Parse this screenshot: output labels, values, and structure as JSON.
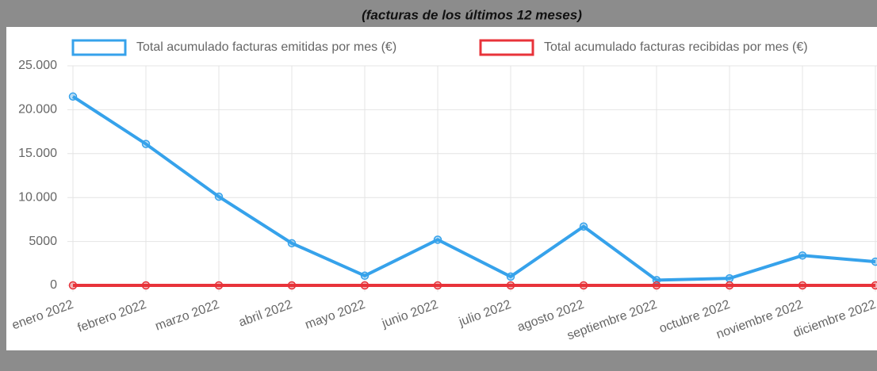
{
  "chart_data": {
    "type": "line",
    "title": "(facturas de los últimos 12 meses)",
    "categories": [
      "enero 2022",
      "febrero 2022",
      "marzo 2022",
      "abril 2022",
      "mayo 2022",
      "junio 2022",
      "julio 2022",
      "agosto 2022",
      "septiembre 2022",
      "octubre 2022",
      "noviembre 2022",
      "diciembre 2022"
    ],
    "series": [
      {
        "name": "Total acumulado facturas emitidas por mes (€)",
        "color": "#36a2eb",
        "values": [
          21500,
          16100,
          10100,
          4800,
          1100,
          5200,
          1000,
          6700,
          600,
          800,
          3400,
          2700
        ]
      },
      {
        "name": "Total acumulado facturas recibidas por mes (€)",
        "color": "#e8333a",
        "values": [
          0,
          0,
          0,
          0,
          0,
          0,
          0,
          0,
          0,
          0,
          0,
          0
        ]
      }
    ],
    "ylim": [
      0,
      25000
    ],
    "yticks": [
      0,
      5000,
      {
        "value": 10000,
        "label": "10.000"
      },
      {
        "value": 15000,
        "label": "15.000"
      },
      {
        "value": 20000,
        "label": "20.000"
      },
      {
        "value": 25000,
        "label": "25.000"
      }
    ],
    "grid": true
  }
}
